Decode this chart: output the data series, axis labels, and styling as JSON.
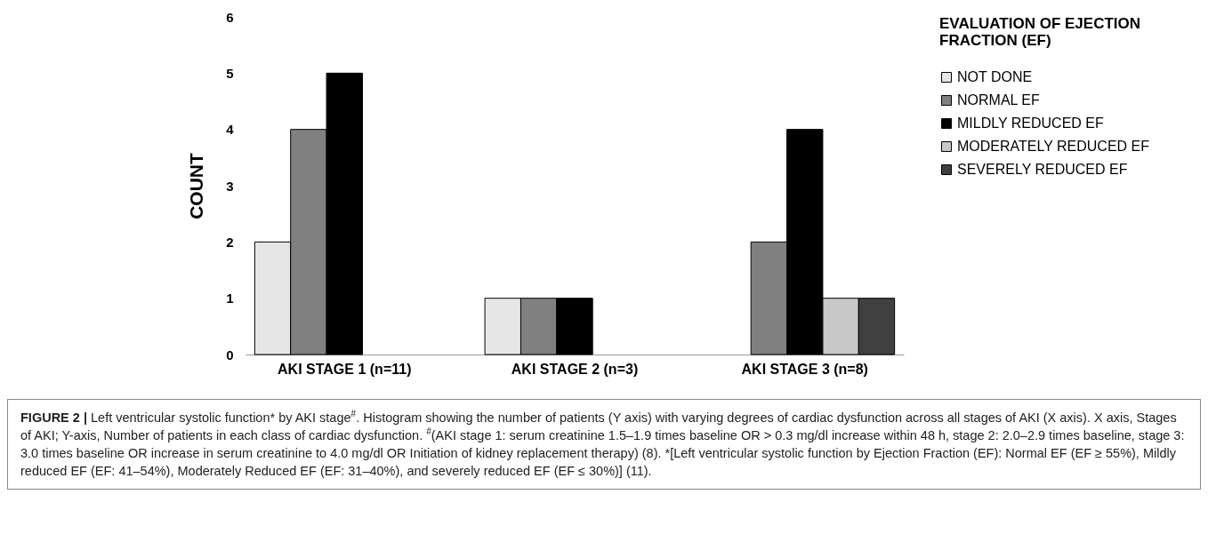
{
  "chart_data": {
    "type": "bar",
    "ylabel": "COUNT",
    "legend_title": "EVALUATION OF EJECTION FRACTION (EF)",
    "categories": [
      "AKI STAGE 1 (n=11)",
      "AKI STAGE 2 (n=3)",
      "AKI STAGE 3 (n=8)"
    ],
    "series": [
      {
        "name": "NOT DONE",
        "color": "#e6e6e6",
        "values": [
          2,
          1,
          null
        ]
      },
      {
        "name": "NORMAL EF",
        "color": "#808080",
        "values": [
          4,
          1,
          2
        ]
      },
      {
        "name": "MILDLY REDUCED EF",
        "color": "#000000",
        "values": [
          5,
          1,
          4
        ]
      },
      {
        "name": "MODERATELY REDUCED EF",
        "color": "#c8c8c8",
        "values": [
          null,
          null,
          1
        ]
      },
      {
        "name": "SEVERELY REDUCED EF",
        "color": "#404040",
        "values": [
          null,
          null,
          1
        ]
      }
    ],
    "ylim": [
      0,
      6
    ],
    "yticks": [
      0,
      1,
      2,
      3,
      4,
      5,
      6
    ],
    "grid": false,
    "legend": "right",
    "annotations": [
      "FIGURE 2 |",
      "Left ventricular systolic function* by AKI stage$^{#}$. Histogram showing the number of patients (Y axis) with varying degrees of cardiac dysfunction across all stages of AKI (X axis). X axis, Stages of AKI; Y-axis, Number of patients in each class of cardiac dysfunction. $^{#}$(AKI stage 1: serum creatinine 1.5–1.9 times baseline OR > 0.3 mg/dl increase within 48 h, stage 2: 2.0–2.9 times baseline, stage 3: 3.0 times baseline OR increase in serum creatinine to 4.0 mg/dl OR Initiation of kidney replacement therapy) (8). *[Left ventricular systolic function by Ejection Fraction (EF): Normal EF (EF ≥ 55%), Mildly reduced EF (EF: 41–54%), Moderately Reduced EF (EF: 31–40%), and severely reduced EF (EF ≤ 30%)] (11)."
    ]
  }
}
